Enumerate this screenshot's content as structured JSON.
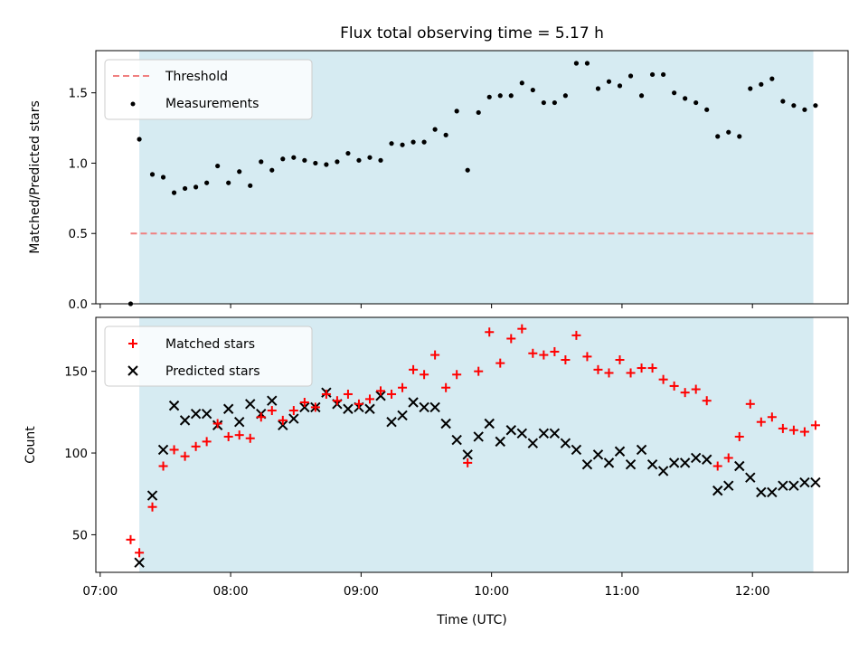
{
  "colors": {
    "shade": "#add8e6",
    "threshold": "#f08080",
    "measurements": "#000000",
    "matched": "#ff0000",
    "predicted": "#000000"
  },
  "chart_data": {
    "type": "scatter",
    "title": "Flux total observing time = 5.17 h",
    "xlabel": "Time (UTC)",
    "x_unit": "time",
    "x_ticks": [
      "07:00",
      "08:00",
      "09:00",
      "10:00",
      "11:00",
      "12:00"
    ],
    "xlim": [
      "06:58",
      "12:44"
    ],
    "shaded_interval": [
      "07:18",
      "12:28"
    ],
    "panels": [
      {
        "ylabel": "Matched/Predicted stars",
        "ylim": [
          0,
          1.8
        ],
        "y_ticks": [
          "0.0",
          "0.5",
          "1.0",
          "1.5"
        ],
        "legend_position": "upper-left",
        "threshold": {
          "name": "Threshold",
          "value": 0.5,
          "x_start": "07:14",
          "x_end": "12:28"
        },
        "series": [
          {
            "name": "Measurements",
            "marker": "dot",
            "points": [
              [
                "07:14",
                0.0
              ],
              [
                "07:18",
                1.17
              ],
              [
                "07:24",
                0.92
              ],
              [
                "07:29",
                0.9
              ],
              [
                "07:34",
                0.79
              ],
              [
                "07:39",
                0.82
              ],
              [
                "07:44",
                0.83
              ],
              [
                "07:49",
                0.86
              ],
              [
                "07:54",
                0.98
              ],
              [
                "07:59",
                0.86
              ],
              [
                "08:04",
                0.94
              ],
              [
                "08:09",
                0.84
              ],
              [
                "08:14",
                1.01
              ],
              [
                "08:19",
                0.95
              ],
              [
                "08:24",
                1.03
              ],
              [
                "08:29",
                1.04
              ],
              [
                "08:34",
                1.02
              ],
              [
                "08:39",
                1.0
              ],
              [
                "08:44",
                0.99
              ],
              [
                "08:49",
                1.01
              ],
              [
                "08:54",
                1.07
              ],
              [
                "08:59",
                1.02
              ],
              [
                "09:04",
                1.04
              ],
              [
                "09:09",
                1.02
              ],
              [
                "09:14",
                1.14
              ],
              [
                "09:19",
                1.13
              ],
              [
                "09:24",
                1.15
              ],
              [
                "09:29",
                1.15
              ],
              [
                "09:34",
                1.24
              ],
              [
                "09:39",
                1.2
              ],
              [
                "09:44",
                1.37
              ],
              [
                "09:49",
                0.95
              ],
              [
                "09:54",
                1.36
              ],
              [
                "09:59",
                1.47
              ],
              [
                "10:04",
                1.48
              ],
              [
                "10:09",
                1.48
              ],
              [
                "10:14",
                1.57
              ],
              [
                "10:19",
                1.52
              ],
              [
                "10:24",
                1.43
              ],
              [
                "10:29",
                1.43
              ],
              [
                "10:34",
                1.48
              ],
              [
                "10:39",
                1.71
              ],
              [
                "10:44",
                1.71
              ],
              [
                "10:49",
                1.53
              ],
              [
                "10:54",
                1.58
              ],
              [
                "10:59",
                1.55
              ],
              [
                "11:04",
                1.62
              ],
              [
                "11:09",
                1.48
              ],
              [
                "11:14",
                1.63
              ],
              [
                "11:19",
                1.63
              ],
              [
                "11:24",
                1.5
              ],
              [
                "11:29",
                1.46
              ],
              [
                "11:34",
                1.43
              ],
              [
                "11:39",
                1.38
              ],
              [
                "11:44",
                1.19
              ],
              [
                "11:49",
                1.22
              ],
              [
                "11:54",
                1.19
              ],
              [
                "11:59",
                1.53
              ],
              [
                "12:04",
                1.56
              ],
              [
                "12:09",
                1.6
              ],
              [
                "12:14",
                1.44
              ],
              [
                "12:19",
                1.41
              ],
              [
                "12:24",
                1.38
              ],
              [
                "12:29",
                1.41
              ]
            ]
          }
        ]
      },
      {
        "ylabel": "Count",
        "ylim": [
          27,
          183
        ],
        "y_ticks": [
          "50",
          "100",
          "150"
        ],
        "legend_position": "upper-left",
        "series": [
          {
            "name": "Matched stars",
            "marker": "plus",
            "points": [
              [
                "07:14",
                47
              ],
              [
                "07:18",
                39
              ],
              [
                "07:24",
                67
              ],
              [
                "07:29",
                92
              ],
              [
                "07:34",
                102
              ],
              [
                "07:39",
                98
              ],
              [
                "07:44",
                104
              ],
              [
                "07:49",
                107
              ],
              [
                "07:54",
                118
              ],
              [
                "07:59",
                110
              ],
              [
                "08:04",
                111
              ],
              [
                "08:09",
                109
              ],
              [
                "08:14",
                122
              ],
              [
                "08:19",
                126
              ],
              [
                "08:24",
                120
              ],
              [
                "08:29",
                126
              ],
              [
                "08:34",
                131
              ],
              [
                "08:39",
                128
              ],
              [
                "08:44",
                136
              ],
              [
                "08:49",
                132
              ],
              [
                "08:54",
                136
              ],
              [
                "08:59",
                130
              ],
              [
                "09:04",
                133
              ],
              [
                "09:09",
                138
              ],
              [
                "09:14",
                136
              ],
              [
                "09:19",
                140
              ],
              [
                "09:24",
                151
              ],
              [
                "09:29",
                148
              ],
              [
                "09:34",
                160
              ],
              [
                "09:39",
                140
              ],
              [
                "09:44",
                148
              ],
              [
                "09:49",
                94
              ],
              [
                "09:54",
                150
              ],
              [
                "09:59",
                174
              ],
              [
                "10:04",
                155
              ],
              [
                "10:09",
                170
              ],
              [
                "10:14",
                176
              ],
              [
                "10:19",
                161
              ],
              [
                "10:24",
                160
              ],
              [
                "10:29",
                162
              ],
              [
                "10:34",
                157
              ],
              [
                "10:39",
                172
              ],
              [
                "10:44",
                159
              ],
              [
                "10:49",
                151
              ],
              [
                "10:54",
                149
              ],
              [
                "10:59",
                157
              ],
              [
                "11:04",
                149
              ],
              [
                "11:09",
                152
              ],
              [
                "11:14",
                152
              ],
              [
                "11:19",
                145
              ],
              [
                "11:24",
                141
              ],
              [
                "11:29",
                137
              ],
              [
                "11:34",
                139
              ],
              [
                "11:39",
                132
              ],
              [
                "11:44",
                92
              ],
              [
                "11:49",
                97
              ],
              [
                "11:54",
                110
              ],
              [
                "11:59",
                130
              ],
              [
                "12:04",
                119
              ],
              [
                "12:09",
                122
              ],
              [
                "12:14",
                115
              ],
              [
                "12:19",
                114
              ],
              [
                "12:24",
                113
              ],
              [
                "12:29",
                117
              ]
            ]
          },
          {
            "name": "Predicted stars",
            "marker": "x",
            "points": [
              [
                "07:18",
                33
              ],
              [
                "07:24",
                74
              ],
              [
                "07:29",
                102
              ],
              [
                "07:34",
                129
              ],
              [
                "07:39",
                120
              ],
              [
                "07:44",
                124
              ],
              [
                "07:49",
                124
              ],
              [
                "07:54",
                117
              ],
              [
                "07:59",
                127
              ],
              [
                "08:04",
                119
              ],
              [
                "08:09",
                130
              ],
              [
                "08:14",
                124
              ],
              [
                "08:19",
                132
              ],
              [
                "08:24",
                117
              ],
              [
                "08:29",
                121
              ],
              [
                "08:34",
                128
              ],
              [
                "08:39",
                128
              ],
              [
                "08:44",
                137
              ],
              [
                "08:49",
                130
              ],
              [
                "08:54",
                127
              ],
              [
                "08:59",
                128
              ],
              [
                "09:04",
                127
              ],
              [
                "09:09",
                135
              ],
              [
                "09:14",
                119
              ],
              [
                "09:19",
                123
              ],
              [
                "09:24",
                131
              ],
              [
                "09:29",
                128
              ],
              [
                "09:34",
                128
              ],
              [
                "09:39",
                118
              ],
              [
                "09:44",
                108
              ],
              [
                "09:49",
                99
              ],
              [
                "09:54",
                110
              ],
              [
                "09:59",
                118
              ],
              [
                "10:04",
                107
              ],
              [
                "10:09",
                114
              ],
              [
                "10:14",
                112
              ],
              [
                "10:19",
                106
              ],
              [
                "10:24",
                112
              ],
              [
                "10:29",
                112
              ],
              [
                "10:34",
                106
              ],
              [
                "10:39",
                102
              ],
              [
                "10:44",
                93
              ],
              [
                "10:49",
                99
              ],
              [
                "10:54",
                94
              ],
              [
                "10:59",
                101
              ],
              [
                "11:04",
                93
              ],
              [
                "11:09",
                102
              ],
              [
                "11:14",
                93
              ],
              [
                "11:19",
                89
              ],
              [
                "11:24",
                94
              ],
              [
                "11:29",
                94
              ],
              [
                "11:34",
                97
              ],
              [
                "11:39",
                96
              ],
              [
                "11:44",
                77
              ],
              [
                "11:49",
                80
              ],
              [
                "11:54",
                92
              ],
              [
                "11:59",
                85
              ],
              [
                "12:04",
                76
              ],
              [
                "12:09",
                76
              ],
              [
                "12:14",
                80
              ],
              [
                "12:19",
                80
              ],
              [
                "12:24",
                82
              ],
              [
                "12:29",
                82
              ]
            ]
          }
        ]
      }
    ]
  }
}
